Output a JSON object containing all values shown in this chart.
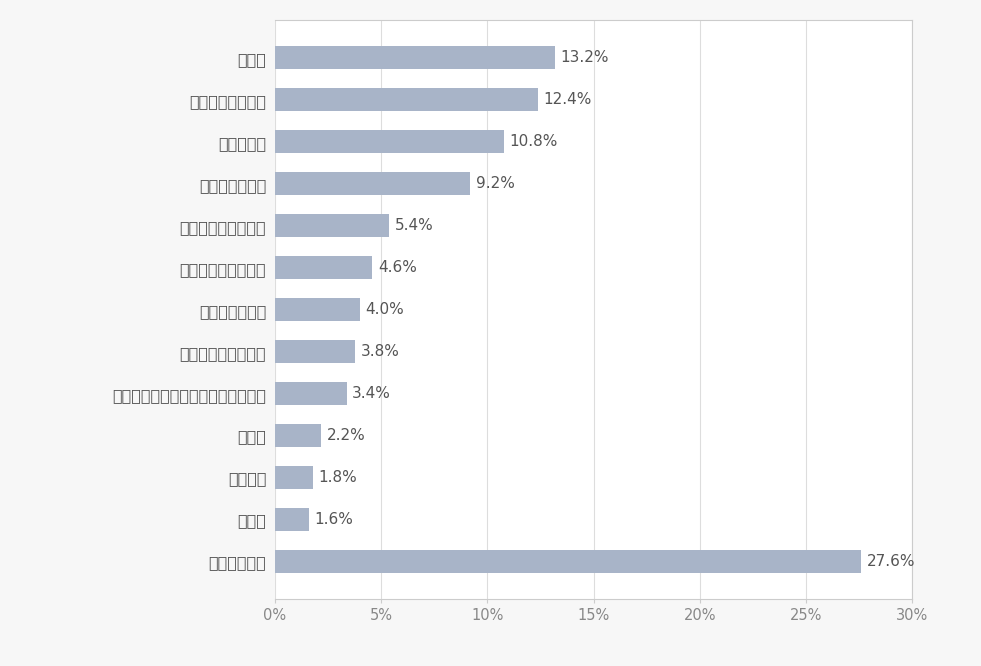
{
  "categories": [
    "何もなかった",
    "その他",
    "購買行動",
    "食事面",
    "競技会や大会・展示会などへの参加",
    "家族や親戚との関係",
    "趣味や自己啓発",
    "美容やファッション",
    "友人や恋人との関係",
    "旅行やレジャー",
    "仕事や学業",
    "健康など身体状況",
    "金銭面"
  ],
  "values": [
    27.6,
    1.6,
    1.8,
    2.2,
    3.4,
    3.8,
    4.0,
    4.6,
    5.4,
    9.2,
    10.8,
    12.4,
    13.2
  ],
  "bar_color": "#a8b4c8",
  "label_color": "#555555",
  "tick_color": "#888888",
  "background_color": "#f7f7f7",
  "plot_background": "#ffffff",
  "border_color": "#cccccc",
  "xlim": [
    0,
    30
  ],
  "xticks": [
    0,
    5,
    10,
    15,
    20,
    25,
    30
  ],
  "xtick_labels": [
    "0%",
    "5%",
    "10%",
    "15%",
    "20%",
    "25%",
    "30%"
  ],
  "bar_height": 0.55,
  "value_fontsize": 11,
  "tick_fontsize": 10.5,
  "label_fontsize": 11.5,
  "figsize": [
    9.81,
    6.66
  ],
  "dpi": 100
}
